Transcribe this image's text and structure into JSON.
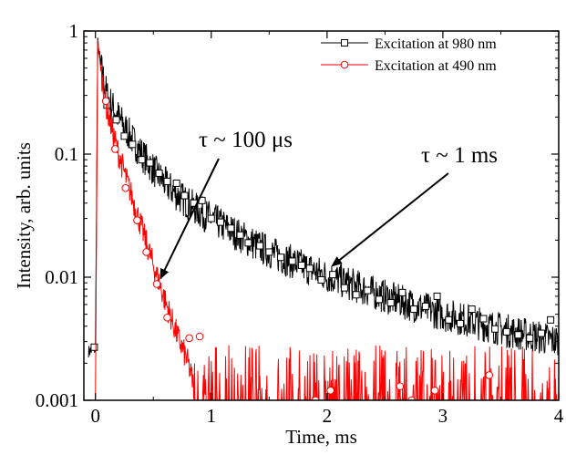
{
  "chart_data": {
    "type": "line",
    "title": "",
    "xlabel": "Time, ms",
    "ylabel": "Intensity, arb. units",
    "xlim": [
      -0.1,
      4
    ],
    "ylim": [
      0.001,
      1
    ],
    "yscale": "log",
    "x_ticks": [
      0,
      1,
      2,
      3,
      4
    ],
    "x_tick_labels": [
      "0",
      "1",
      "2",
      "3",
      "4"
    ],
    "y_ticks": [
      0.001,
      0.01,
      0.1,
      1
    ],
    "y_tick_labels": [
      "0.001",
      "0.01",
      "0.1",
      "1"
    ],
    "grid": false,
    "legend_position": "top-right",
    "series": [
      {
        "name": "Excitation at 980 nm",
        "color": "#000000",
        "marker": "square",
        "x": [
          -0.06,
          0.0,
          0.02,
          0.05,
          0.1,
          0.15,
          0.2,
          0.3,
          0.4,
          0.5,
          0.6,
          0.7,
          0.8,
          0.9,
          1.0,
          1.2,
          1.4,
          1.6,
          1.8,
          2.0,
          2.2,
          2.4,
          2.6,
          2.8,
          3.0,
          3.2,
          3.4,
          3.6,
          3.8,
          4.0
        ],
        "y": [
          0.0025,
          0.0026,
          0.8,
          0.5,
          0.3,
          0.24,
          0.2,
          0.14,
          0.1,
          0.075,
          0.058,
          0.047,
          0.04,
          0.034,
          0.03,
          0.023,
          0.018,
          0.0145,
          0.0122,
          0.0102,
          0.0088,
          0.0075,
          0.0065,
          0.0057,
          0.005,
          0.0045,
          0.004,
          0.0036,
          0.0033,
          0.003
        ],
        "markers_x": [
          -0.01,
          0.1,
          0.18,
          0.25,
          0.32,
          0.4,
          0.47,
          0.55,
          0.62,
          0.7,
          0.77,
          0.85,
          0.92,
          1.0,
          1.08,
          1.17,
          1.25,
          1.32,
          1.42,
          1.5,
          1.6,
          1.7,
          1.78,
          1.85,
          1.95,
          2.05,
          2.15,
          2.25,
          2.35,
          2.45,
          2.55,
          2.65,
          2.75,
          2.85,
          2.95,
          3.05,
          3.15,
          3.25,
          3.35,
          3.45,
          3.55,
          3.65,
          3.75,
          3.85,
          3.93
        ],
        "markers_y": [
          0.0027,
          0.25,
          0.19,
          0.14,
          0.12,
          0.09,
          0.085,
          0.07,
          0.06,
          0.058,
          0.046,
          0.04,
          0.042,
          0.03,
          0.028,
          0.025,
          0.022,
          0.019,
          0.018,
          0.016,
          0.0145,
          0.0135,
          0.0125,
          0.0118,
          0.0095,
          0.0105,
          0.0082,
          0.0072,
          0.0078,
          0.0066,
          0.0062,
          0.0075,
          0.0055,
          0.0058,
          0.007,
          0.0045,
          0.0042,
          0.0055,
          0.0046,
          0.0038,
          0.0036,
          0.0034,
          0.0032,
          0.0035,
          0.0045
        ]
      },
      {
        "name": "Excitation at 490 nm",
        "color": "#ff0000",
        "marker": "circle",
        "x": [
          -0.02,
          0.0,
          0.02,
          0.05,
          0.1,
          0.15,
          0.2,
          0.3,
          0.4,
          0.5,
          0.6,
          0.7,
          0.8,
          0.85,
          0.9,
          1.0,
          1.2,
          1.5,
          2.0,
          2.5,
          3.0,
          3.5,
          4.0
        ],
        "y": [
          0.001,
          0.001,
          0.85,
          0.45,
          0.23,
          0.15,
          0.1,
          0.05,
          0.025,
          0.0125,
          0.0065,
          0.0035,
          0.002,
          0.0013,
          0.001,
          0.001,
          0.001,
          0.001,
          0.001,
          0.001,
          0.001,
          0.001,
          0.001
        ],
        "markers_x": [
          0.09,
          0.17,
          0.26,
          0.36,
          0.44,
          0.53,
          0.62,
          0.81,
          0.9,
          1.9,
          2.03,
          2.63,
          2.73,
          2.93,
          3.4
        ],
        "markers_y": [
          0.27,
          0.11,
          0.053,
          0.029,
          0.016,
          0.0088,
          0.0047,
          0.0032,
          0.0033,
          0.001,
          0.0012,
          0.0013,
          0.001,
          0.0012,
          0.0016
        ]
      }
    ],
    "annotations": [
      {
        "text": "τ ~ 100 μs",
        "target_x": 0.5,
        "target_y": 0.0095
      },
      {
        "text": "τ ~ 1 ms",
        "target_x": 2.0,
        "target_y": 0.012
      }
    ]
  }
}
